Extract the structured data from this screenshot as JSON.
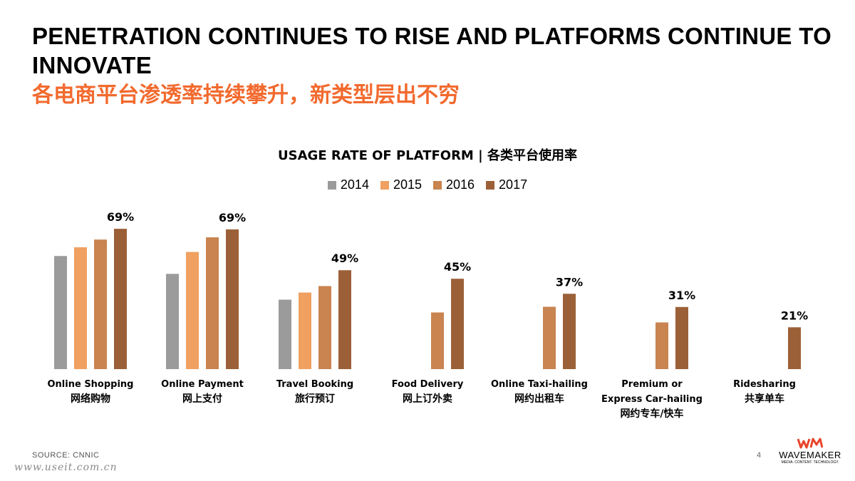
{
  "title": {
    "en": "PENETRATION CONTINUES TO RISE AND PLATFORMS CONTINUE TO INNOVATE",
    "cn": "各电商平台渗透率持续攀升，新类型层出不穷"
  },
  "chart_data": {
    "type": "bar",
    "title": "USAGE RATE OF PLATFORM | 各类平台使用率",
    "ylim": [
      0,
      80
    ],
    "grid": false,
    "legend_position": "top-center",
    "categories": [
      {
        "en": [
          "Online Shopping"
        ],
        "cn": "网络购物"
      },
      {
        "en": [
          "Online Payment"
        ],
        "cn": "网上支付"
      },
      {
        "en": [
          "Travel Booking"
        ],
        "cn": "旅行预订"
      },
      {
        "en": [
          "Food Delivery"
        ],
        "cn": "网上订外卖"
      },
      {
        "en": [
          "Online Taxi-hailing"
        ],
        "cn": "网约出租车"
      },
      {
        "en": [
          "Premium or",
          "Express Car-hailing"
        ],
        "cn": "网约专车/快车"
      },
      {
        "en": [
          "Ridesharing"
        ],
        "cn": "共享单车"
      }
    ],
    "series": [
      {
        "name": "2014",
        "color": "#9b9b9b",
        "values": [
          55.7,
          46.9,
          34.2,
          null,
          null,
          null,
          null
        ]
      },
      {
        "name": "2015",
        "color": "#f0a060",
        "values": [
          60.0,
          57.7,
          37.7,
          null,
          null,
          null,
          null
        ]
      },
      {
        "name": "2016",
        "color": "#c98450",
        "values": [
          63.8,
          64.9,
          40.9,
          27.9,
          30.7,
          23.0,
          null
        ]
      },
      {
        "name": "2017",
        "color": "#9c6038",
        "values": [
          69.1,
          68.8,
          48.7,
          44.5,
          37.1,
          30.6,
          20.6
        ]
      }
    ],
    "data_labels": [
      "69%",
      "69%",
      "49%",
      "45%",
      "37%",
      "31%",
      "21%"
    ]
  },
  "footer": {
    "source": "SOURCE: CNNIC",
    "page_number": "4",
    "watermark": "www.useit.com.cn"
  },
  "logo": {
    "name": "WAVEMAKER",
    "tagline": "MEDIA. CONTENT. TECHNOLOGY.",
    "accent_color": "#e8452c"
  }
}
